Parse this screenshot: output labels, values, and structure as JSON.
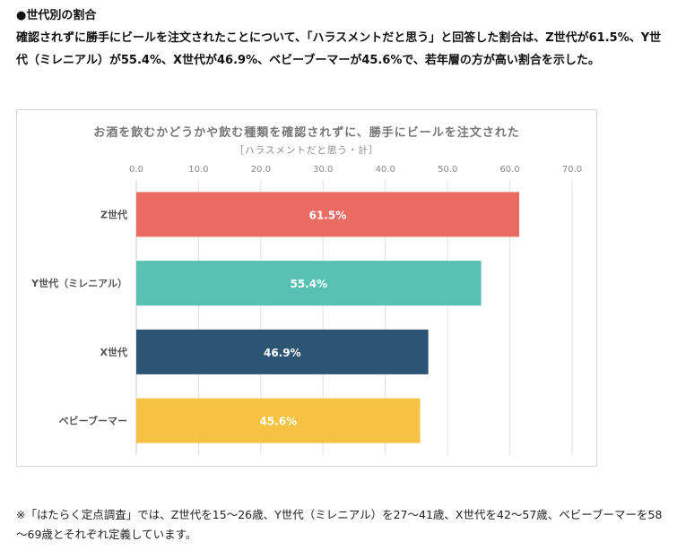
{
  "heading": "●世代別の割合",
  "intro": "確認されずに勝手にビールを注文されたことについて、「ハラスメントだと思う」と回答した割合は、Z世代が61.5%、Y世代（ミレニアル）が55.4%、X世代が46.9%、ベビーブーマーが45.6%で、若年層の方が高い割合を示した。",
  "footnote": "※「はたらく定点調査」では、Z世代を15～26歳、Y世代（ミレニアル）を27～41歳、X世代を42～57歳、ベビーブーマーを58～69歳とそれぞれ定義しています。",
  "chart_data": {
    "type": "bar",
    "orientation": "horizontal",
    "title": "お酒を飲むかどうかや飲む種類を確認されずに、勝手にビールを注文された",
    "subtitle": "［ハラスメントだと思う・計］",
    "categories": [
      "Z世代",
      "Y世代（ミレニアル）",
      "X世代",
      "ベビーブーマー"
    ],
    "values": [
      61.5,
      55.4,
      46.9,
      45.6
    ],
    "value_labels": [
      "61.5%",
      "55.4%",
      "46.9%",
      "45.6%"
    ],
    "colors": [
      "#ea6c63",
      "#59c1b3",
      "#2c5574",
      "#f6c244"
    ],
    "xlim": [
      0,
      70
    ],
    "xticks": [
      0,
      10,
      20,
      30,
      40,
      50,
      60,
      70
    ],
    "xtick_labels": [
      "0.0",
      "10.0",
      "20.0",
      "30.0",
      "40.0",
      "50.0",
      "60.0",
      "70.0"
    ],
    "grid": true,
    "xaxis_position": "top"
  }
}
